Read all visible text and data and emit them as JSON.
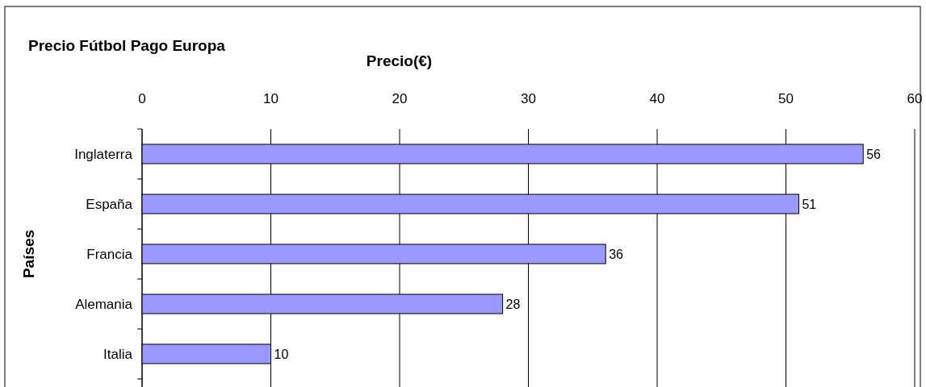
{
  "chart_data": {
    "type": "bar",
    "orientation": "horizontal",
    "title": "Precio Fútbol Pago Europa",
    "xlabel": "Precio(€)",
    "ylabel": "Países",
    "categories": [
      "Inglaterra",
      "España",
      "Francia",
      "Alemania",
      "Italia"
    ],
    "values": [
      56,
      51,
      36,
      28,
      10
    ],
    "color": "#9999ff",
    "xlim": [
      0,
      60
    ],
    "xticks": [
      0,
      10,
      20,
      30,
      40,
      50,
      60
    ],
    "grid": "x",
    "data_labels": true
  }
}
